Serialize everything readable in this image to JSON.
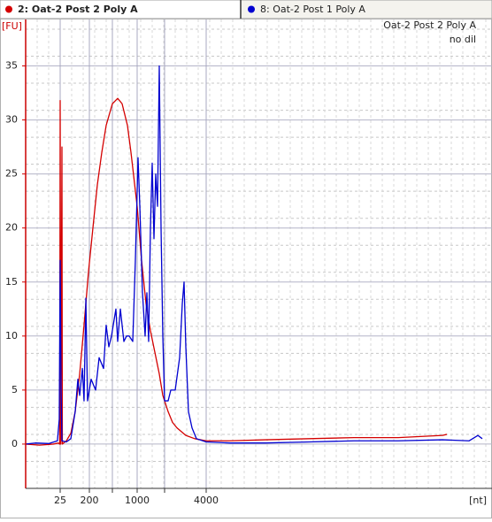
{
  "chart_data": {
    "type": "line",
    "annotation": "Oat-2 Post 2 Poly A",
    "subannotation": "no dil",
    "ylabel": "[FU]",
    "xlabel": "[nt]",
    "xlim": [
      10,
      10000
    ],
    "xticks": [
      25,
      200,
      1000,
      4000
    ],
    "xgrid_minor": [
      500,
      2000
    ],
    "ylim": [
      -4.1,
      39.3
    ],
    "yticks": [
      0,
      5,
      10,
      15,
      20,
      25,
      30,
      35
    ],
    "grid": true,
    "series": [
      {
        "name": "2: Oat-2 Post 2 Poly A",
        "color": "#d40000",
        "x": [
          10,
          16,
          22,
          24.2,
          24.8,
          25,
          28.7,
          35.6,
          38,
          62,
          89,
          115,
          142,
          168,
          195,
          246,
          304,
          362,
          419,
          500,
          607,
          696,
          804,
          875,
          1000,
          1161,
          1323,
          1484,
          1645,
          1806,
          1935,
          2170,
          2383,
          2596,
          3021,
          3447,
          4000,
          4519,
          5288,
          6250,
          7212,
          8173,
          9135,
          9231
        ],
        "values": [
          0,
          -0.1,
          0,
          0.1,
          0,
          31.8,
          0,
          27.5,
          0,
          0.3,
          1,
          3,
          6.5,
          11,
          16,
          20,
          24,
          27,
          29.5,
          31.5,
          32,
          31.5,
          29.5,
          27,
          22,
          17,
          13,
          10.5,
          8.5,
          6.5,
          4.5,
          3,
          2,
          1.5,
          0.8,
          0.5,
          0.3,
          0.3,
          0.4,
          0.5,
          0.6,
          0.6,
          0.8,
          0.9
        ]
      },
      {
        "name": "8: Oat-2 Post 1 Poly A",
        "color": "#0000d0",
        "x": [
          10,
          14.2,
          20,
          23.8,
          24.6,
          25,
          30.3,
          35.6,
          62,
          89,
          115,
          131,
          142,
          158,
          168,
          179,
          189,
          223,
          281,
          327,
          385,
          419,
          454,
          488,
          571,
          607,
          661,
          732,
          786,
          839,
          911,
          964,
          1032,
          1097,
          1194,
          1290,
          1355,
          1419,
          1484,
          1548,
          1613,
          1677,
          1742,
          1806,
          1871,
          1935,
          2000,
          2170,
          2298,
          2511,
          2723,
          2851,
          2936,
          3021,
          3149,
          3319,
          3532,
          4000,
          4519,
          5288,
          6250,
          7212,
          8173,
          9135,
          9712,
          9904,
          10000
        ],
        "values": [
          0,
          0.1,
          0.05,
          0.3,
          2.3,
          17,
          5.2,
          0.3,
          0.2,
          0.5,
          3,
          6,
          4.5,
          7,
          4,
          13.5,
          4,
          6,
          5,
          8,
          7,
          11,
          9,
          10,
          12.5,
          9.5,
          12.5,
          9.5,
          10,
          10,
          9.5,
          17,
          26.5,
          22,
          14,
          10,
          14,
          9.5,
          20,
          26,
          19,
          25,
          22,
          35,
          20,
          10,
          4,
          4,
          5,
          5,
          8,
          13,
          15,
          9,
          3,
          1.5,
          0.5,
          0.2,
          0.1,
          0.1,
          0.2,
          0.3,
          0.3,
          0.4,
          0.3,
          0.8,
          0.5
        ]
      }
    ]
  }
}
